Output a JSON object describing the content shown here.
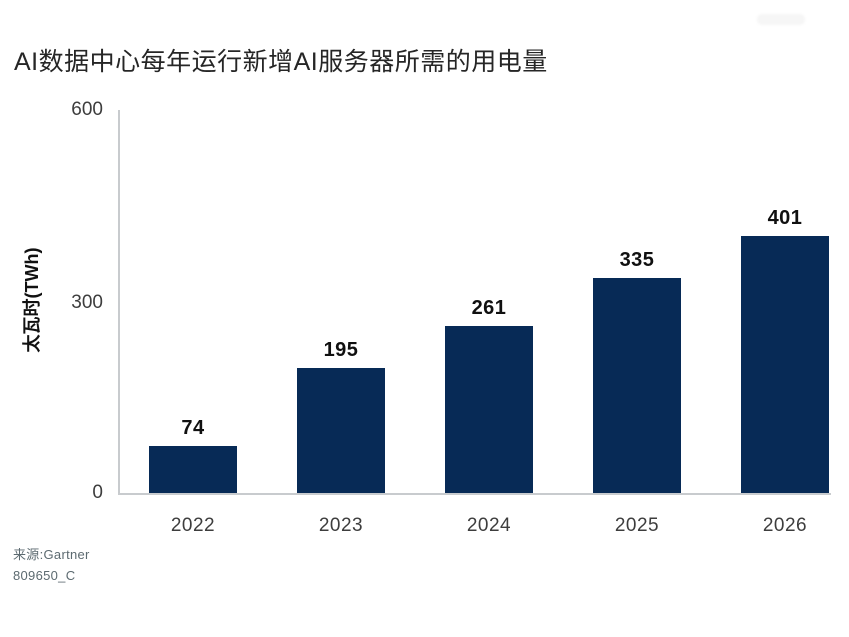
{
  "chart_data": {
    "type": "bar",
    "title": "AI数据中心每年运行新增AI服务器所需的用电量",
    "categories": [
      "2022",
      "2023",
      "2024",
      "2025",
      "2026"
    ],
    "values": [
      74,
      195,
      261,
      335,
      401
    ],
    "xlabel": "",
    "ylabel": "太瓦时(TWh)",
    "yticks": [
      600,
      300,
      0
    ],
    "ylim": [
      0,
      600
    ],
    "grid": false,
    "legend": "none",
    "value_labels": true,
    "source_line1": "来源:Gartner",
    "source_line2": "809650_C"
  },
  "colors": {
    "bar": "#072a56",
    "axis_line": "#c8cbce",
    "title_text": "#262626",
    "tick_text": "#3d3d3d",
    "value_label_text": "#101010",
    "source_text": "#5c6a70",
    "background": "#ffffff"
  }
}
